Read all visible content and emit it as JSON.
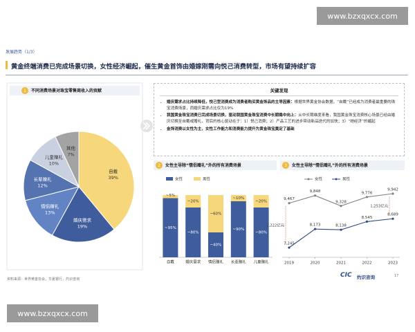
{
  "watermarks": [
    "www.bzxqxcx.com",
    "www.bzxqxcx.com"
  ],
  "header": {
    "section": "发展趋势（1/3）",
    "title": "黄金终端消费已完成场景切换，女性经济崛起，催生黄金首饰由婚嫁刚需向悦己消费转型，市场有望持续扩容"
  },
  "findings": {
    "title": "关键发现",
    "items": [
      {
        "lead": "婚庆需求占比持续降低，悦己型消费成为消费者购买黄金饰品的主导因素：",
        "text": "根据世界黄金协会数据，“自戴”已经成为消费者最重要的珠宝消费场景，而婚庆需求占比仅为19%"
      },
      {
        "lead": "我国黄金珠宝消费已完成场景切换，驱动我国黄金珠宝消费中长期稳中向上：",
        "text": "从中长期维度来看，我国黄金珠宝消费核心场景已经由婚庆切换至自戴或赠礼，背后的核心驱动在于：1）悦己消费；2）产品工艺的进步带动新品迭代的加快；3）“她经济”的崛起"
      },
      {
        "lead": "金饰消费以女性为主，女性工作能力和消费能力提升为黄金珠宝奠定了基础",
        "text": ""
      }
    ]
  },
  "chart_data": [
    {
      "type": "pie",
      "badge": "1",
      "title": "不同消费场景对珠宝零售商收入的贡献",
      "categories": [
        "自戴",
        "婚庆需求",
        "情侣赠礼",
        "长辈赠礼",
        "儿童赠礼",
        "其他"
      ],
      "values": [
        39,
        19,
        13,
        12,
        10,
        7
      ],
      "value_labels": [
        "39%",
        "19%",
        "13%",
        "12%",
        "10%",
        "7%"
      ],
      "colors": [
        "#f6d77b",
        "#3f5d9c",
        "#6384c4",
        "#5473b0",
        "#c9d0e0",
        "#a3a3a3"
      ]
    },
    {
      "type": "stacked_bar",
      "badge": "2",
      "title": "女性主导除“情侣赠礼”外的所有消费场景",
      "categories": [
        "自戴",
        "婚庆需求",
        "情侣赠礼",
        "长辈赠礼",
        "儿童赠礼"
      ],
      "series": [
        {
          "name": "女性",
          "color": "#3f5d9c",
          "values": [
            95,
            80,
            40,
            90,
            80
          ],
          "value_labels": [
            "~95%",
            "~80%",
            "~40%",
            "~90%",
            "~80%"
          ]
        },
        {
          "name": "男性",
          "color": "#f6d77b",
          "values": [
            5,
            20,
            60,
            10,
            20
          ],
          "value_labels": [
            "~5%",
            "~20%",
            "~60%",
            "~10%",
            "~20%"
          ]
        }
      ]
    },
    {
      "type": "line",
      "badge": "3",
      "title": "女性主导除“情侣赠礼”外的所有消费场景",
      "x": [
        2019,
        2020,
        2021,
        2022,
        2023
      ],
      "series": [
        {
          "name": "女性",
          "color": "#7d828c",
          "values": [
            9467,
            9848,
            9328,
            9776,
            9942
          ],
          "value_labels": [
            "9,467",
            "9,848",
            "9,328",
            "9,776",
            "9,942"
          ]
        },
        {
          "name": "男性",
          "color": "#2f4b85",
          "values": [
            7245,
            8173,
            8138,
            8545,
            8689
          ],
          "value_labels": [
            "7,245",
            "8,173",
            "8,138",
            "8,545",
            "8,689"
          ]
        }
      ],
      "annotations": [
        "2,222亿元",
        "1,253亿元"
      ]
    }
  ],
  "footer": {
    "source": "资料来源：世界黄金协会，华夏银行，灼识咨询",
    "logo": "CIC",
    "logo_text": "灼识咨询",
    "page": "17"
  }
}
